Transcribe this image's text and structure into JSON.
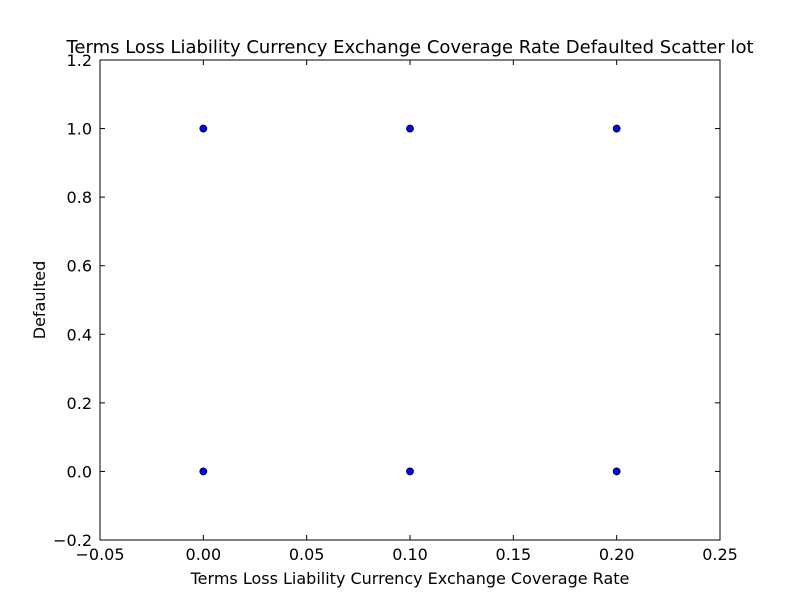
{
  "chart_data": {
    "type": "scatter",
    "title": "Terms Loss Liability Currency Exchange Coverage Rate Defaulted Scatter lot",
    "xlabel": "Terms Loss Liability Currency Exchange Coverage Rate",
    "ylabel": "Defaulted",
    "xlim": [
      -0.05,
      0.25
    ],
    "ylim": [
      -0.2,
      1.2
    ],
    "xticks": [
      -0.05,
      0.0,
      0.05,
      0.1,
      0.15,
      0.2,
      0.25
    ],
    "xtick_labels": [
      "−0.05",
      "0.00",
      "0.05",
      "0.10",
      "0.15",
      "0.20",
      "0.25"
    ],
    "yticks": [
      -0.2,
      0.0,
      0.2,
      0.4,
      0.6,
      0.8,
      1.0,
      1.2
    ],
    "ytick_labels": [
      "−0.2",
      "0.0",
      "0.2",
      "0.4",
      "0.6",
      "0.8",
      "1.0",
      "1.2"
    ],
    "grid": false,
    "marker_color": "#0000ff",
    "marker_edge_color": "#000000",
    "points": [
      {
        "x": 0.0,
        "y": 1.0
      },
      {
        "x": 0.1,
        "y": 1.0
      },
      {
        "x": 0.2,
        "y": 1.0
      },
      {
        "x": 0.0,
        "y": 0.0
      },
      {
        "x": 0.1,
        "y": 0.0
      },
      {
        "x": 0.2,
        "y": 0.0
      }
    ]
  }
}
